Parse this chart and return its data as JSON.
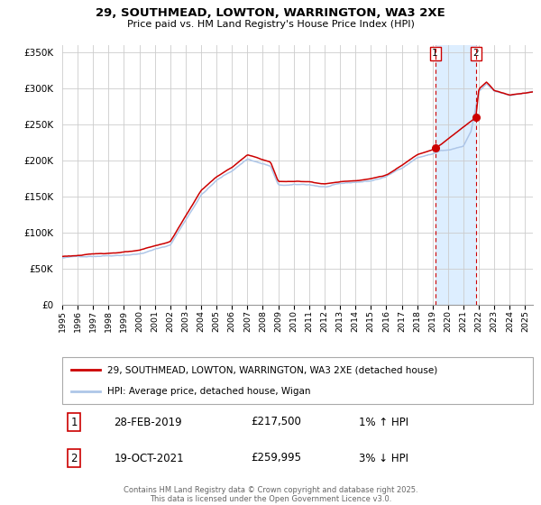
{
  "title_line1": "29, SOUTHMEAD, LOWTON, WARRINGTON, WA3 2XE",
  "title_line2": "Price paid vs. HM Land Registry's House Price Index (HPI)",
  "ylim": [
    0,
    360000
  ],
  "xlim_start": 1995.0,
  "xlim_end": 2025.5,
  "yticks": [
    0,
    50000,
    100000,
    150000,
    200000,
    250000,
    300000,
    350000
  ],
  "ytick_labels": [
    "£0",
    "£50K",
    "£100K",
    "£150K",
    "£200K",
    "£250K",
    "£300K",
    "£350K"
  ],
  "xticks": [
    1995,
    1996,
    1997,
    1998,
    1999,
    2000,
    2001,
    2002,
    2003,
    2004,
    2005,
    2006,
    2007,
    2008,
    2009,
    2010,
    2011,
    2012,
    2013,
    2014,
    2015,
    2016,
    2017,
    2018,
    2019,
    2020,
    2021,
    2022,
    2023,
    2024,
    2025
  ],
  "legend_line1": "29, SOUTHMEAD, LOWTON, WARRINGTON, WA3 2XE (detached house)",
  "legend_line2": "HPI: Average price, detached house, Wigan",
  "sale1_label": "1",
  "sale1_date": "28-FEB-2019",
  "sale1_price": "£217,500",
  "sale1_hpi": "1% ↑ HPI",
  "sale1_x": 2019.167,
  "sale1_y": 217500,
  "sale2_label": "2",
  "sale2_date": "19-OCT-2021",
  "sale2_price": "£259,995",
  "sale2_hpi": "3% ↓ HPI",
  "sale2_x": 2021.8,
  "sale2_y": 259995,
  "vline1_x": 2019.167,
  "vline2_x": 2021.8,
  "hpi_color": "#aec6e8",
  "price_color": "#cc0000",
  "vline_color": "#cc0000",
  "shade_color": "#ddeeff",
  "footer": "Contains HM Land Registry data © Crown copyright and database right 2025.\nThis data is licensed under the Open Government Licence v3.0.",
  "background_color": "#ffffff",
  "grid_color": "#cccccc"
}
